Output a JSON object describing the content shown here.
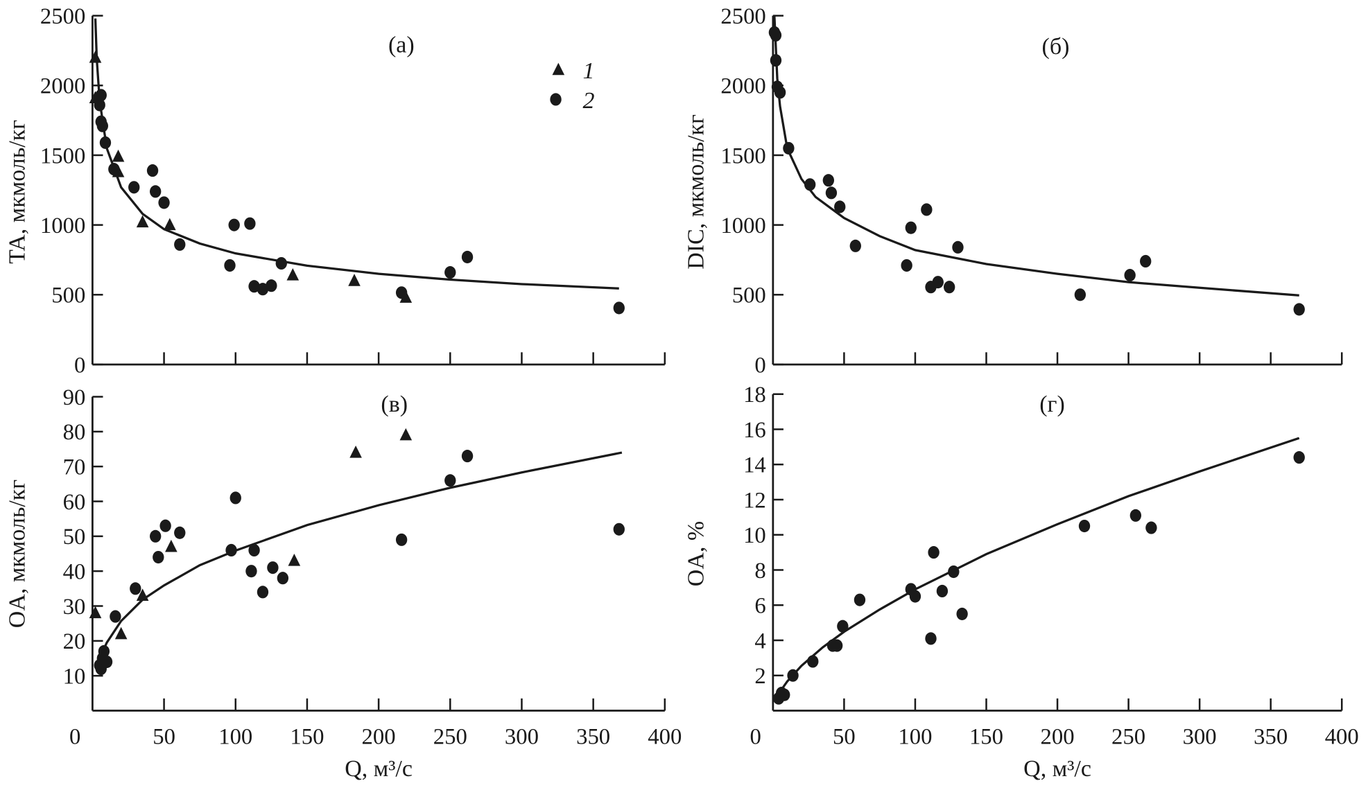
{
  "legend": [
    {
      "marker": "triangle",
      "label": "1"
    },
    {
      "marker": "circle",
      "label": "2"
    }
  ],
  "chart_data": [
    {
      "type": "scatter",
      "panel_label": "(а)",
      "ylabel": "TA, мкмоль/кг",
      "xlabel": "",
      "xlim": [
        0,
        400
      ],
      "ylim": [
        0,
        2500
      ],
      "xticks": [
        0,
        50,
        100,
        150,
        200,
        250,
        300,
        350,
        400
      ],
      "xticklabels_shown": false,
      "yticks": [
        0,
        500,
        1000,
        1500,
        2000,
        2500
      ],
      "grid": false,
      "legend_position": "top-right",
      "series": [
        {
          "name": "1",
          "marker": "triangle",
          "x": [
            2,
            2,
            18,
            18,
            35,
            54,
            140,
            183,
            219
          ],
          "y": [
            2200,
            1910,
            1490,
            1380,
            1020,
            1000,
            640,
            600,
            480
          ]
        },
        {
          "name": "2",
          "marker": "circle",
          "x": [
            5,
            6,
            6,
            7,
            9,
            15,
            29,
            42,
            44,
            50,
            61,
            96,
            99,
            110,
            113,
            119,
            125,
            132,
            216,
            250,
            262,
            368
          ],
          "y": [
            1860,
            1930,
            1740,
            1710,
            1590,
            1400,
            1270,
            1390,
            1240,
            1160,
            860,
            710,
            1000,
            1010,
            560,
            540,
            565,
            725,
            515,
            660,
            770,
            405
          ]
        }
      ],
      "fit_curve": {
        "x": [
          2,
          3,
          5,
          10,
          20,
          35,
          50,
          75,
          100,
          150,
          200,
          250,
          300,
          368
        ],
        "y": [
          2480,
          2190,
          1890,
          1550,
          1270,
          1080,
          970,
          867,
          796,
          708,
          650,
          608,
          576,
          545
        ]
      }
    },
    {
      "type": "scatter",
      "panel_label": "(б)",
      "ylabel": "DIC, мкмоль/кг",
      "xlabel": "",
      "xlim": [
        0,
        400
      ],
      "ylim": [
        0,
        2500
      ],
      "xticks": [
        0,
        50,
        100,
        150,
        200,
        250,
        300,
        350,
        400
      ],
      "xticklabels_shown": false,
      "yticks": [
        0,
        500,
        1000,
        1500,
        2000,
        2500
      ],
      "grid": false,
      "series": [
        {
          "name": "2",
          "marker": "circle",
          "x": [
            1,
            2,
            2,
            3,
            5,
            11,
            26,
            39,
            41,
            47,
            58,
            94,
            97,
            108,
            111,
            116,
            124,
            130,
            216,
            251,
            262,
            370
          ],
          "y": [
            2380,
            2360,
            2180,
            1990,
            1950,
            1550,
            1290,
            1320,
            1230,
            1130,
            850,
            710,
            980,
            1110,
            555,
            590,
            555,
            840,
            500,
            640,
            740,
            395
          ]
        }
      ],
      "fit_curve": {
        "x": [
          1,
          3,
          5,
          10,
          20,
          30,
          50,
          75,
          100,
          150,
          200,
          250,
          300,
          370
        ],
        "y": [
          2500,
          2050,
          1850,
          1550,
          1330,
          1200,
          1050,
          920,
          820,
          720,
          650,
          590,
          550,
          495
        ]
      }
    },
    {
      "type": "scatter",
      "panel_label": "(в)",
      "ylabel": "OA, мкмоль/кг",
      "xlabel": "Q, м³/с",
      "xlim": [
        0,
        400
      ],
      "ylim": [
        0,
        90
      ],
      "xticks": [
        0,
        50,
        100,
        150,
        200,
        250,
        300,
        350,
        400
      ],
      "xticklabels_shown": true,
      "yticks": [
        10,
        20,
        30,
        40,
        50,
        60,
        70,
        80,
        90
      ],
      "grid": false,
      "series": [
        {
          "name": "1",
          "marker": "triangle",
          "x": [
            2,
            20,
            35,
            55,
            141,
            184,
            219
          ],
          "y": [
            28,
            22,
            33,
            47,
            43,
            74,
            79
          ]
        },
        {
          "name": "2",
          "marker": "circle",
          "x": [
            5,
            6,
            7,
            8,
            10,
            16,
            30,
            44,
            46,
            51,
            61,
            97,
            100,
            111,
            113,
            119,
            126,
            133,
            216,
            250,
            262,
            368
          ],
          "y": [
            13,
            12,
            15,
            17,
            14,
            27,
            35,
            50,
            44,
            53,
            51,
            46,
            61,
            40,
            46,
            34,
            41,
            38,
            49,
            66,
            73,
            52
          ]
        }
      ],
      "fit_curve": {
        "x": [
          5,
          10,
          20,
          35,
          50,
          75,
          100,
          150,
          200,
          250,
          300,
          370
        ],
        "y": [
          15.0,
          19.5,
          25.7,
          31.8,
          35.9,
          41.7,
          45.9,
          53.2,
          58.9,
          63.9,
          68.3,
          74.0
        ]
      }
    },
    {
      "type": "scatter",
      "panel_label": "(г)",
      "ylabel": "OA, %",
      "xlabel": "Q, м³/с",
      "xlim": [
        0,
        400
      ],
      "ylim": [
        0,
        18
      ],
      "xticks": [
        0,
        50,
        100,
        150,
        200,
        250,
        300,
        350,
        400
      ],
      "xticklabels_shown": true,
      "yticks": [
        2,
        4,
        6,
        8,
        10,
        12,
        14,
        16,
        18
      ],
      "grid": false,
      "series": [
        {
          "name": "2",
          "marker": "circle",
          "x": [
            4,
            6,
            8,
            14,
            28,
            42,
            45,
            49,
            61,
            97,
            100,
            111,
            113,
            119,
            127,
            133,
            219,
            255,
            266,
            370
          ],
          "y": [
            0.7,
            1.0,
            0.9,
            2.0,
            2.8,
            3.7,
            3.7,
            4.8,
            6.3,
            6.9,
            6.5,
            4.1,
            9.0,
            6.8,
            7.9,
            5.5,
            10.5,
            11.1,
            10.4,
            14.4
          ]
        }
      ],
      "fit_curve": {
        "x": [
          5,
          10,
          20,
          35,
          50,
          75,
          100,
          150,
          200,
          250,
          300,
          370
        ],
        "y": [
          1.08,
          1.66,
          2.55,
          3.6,
          4.49,
          5.75,
          6.9,
          8.9,
          10.6,
          12.2,
          13.6,
          15.5
        ]
      }
    }
  ]
}
